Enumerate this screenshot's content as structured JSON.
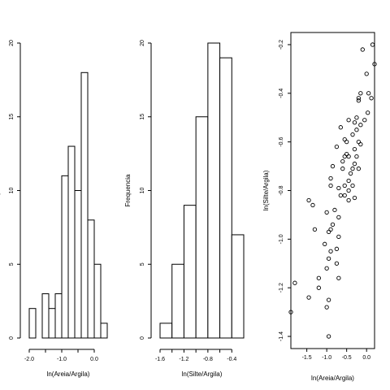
{
  "chart_data": [
    {
      "type": "bar",
      "xlabel": "ln(Areia/Argila)",
      "ylabel": "Frequencia",
      "bins": [
        {
          "x0": -2.0,
          "x1": -1.8,
          "count": 2
        },
        {
          "x0": -1.8,
          "x1": -1.6,
          "count": 0
        },
        {
          "x0": -1.6,
          "x1": -1.4,
          "count": 3
        },
        {
          "x0": -1.4,
          "x1": -1.2,
          "count": 2
        },
        {
          "x0": -1.2,
          "x1": -1.0,
          "count": 3
        },
        {
          "x0": -1.0,
          "x1": -0.8,
          "count": 11
        },
        {
          "x0": -0.8,
          "x1": -0.6,
          "count": 13
        },
        {
          "x0": -0.6,
          "x1": -0.4,
          "count": 10
        },
        {
          "x0": -0.4,
          "x1": -0.2,
          "count": 18
        },
        {
          "x0": -0.2,
          "x1": 0.0,
          "count": 8
        },
        {
          "x0": 0.0,
          "x1": 0.2,
          "count": 5
        },
        {
          "x0": 0.2,
          "x1": 0.4,
          "count": 1
        }
      ],
      "xticks": [
        -2.0,
        -1.5,
        -1.0,
        -0.5,
        0.0
      ],
      "xtick_labels": [
        "-2.0",
        "",
        "-1.0",
        "",
        "0.0"
      ],
      "yticks": [
        0,
        5,
        10,
        15,
        20
      ],
      "xlim": [
        -2.0,
        0.4
      ],
      "ylim": [
        0,
        20
      ]
    },
    {
      "type": "bar",
      "xlabel": "ln(Silte/Argila)",
      "ylabel": "Frequencia",
      "bins": [
        {
          "x0": -1.6,
          "x1": -1.4,
          "count": 1
        },
        {
          "x0": -1.4,
          "x1": -1.2,
          "count": 5
        },
        {
          "x0": -1.2,
          "x1": -1.0,
          "count": 9
        },
        {
          "x0": -1.0,
          "x1": -0.8,
          "count": 15
        },
        {
          "x0": -0.8,
          "x1": -0.6,
          "count": 20
        },
        {
          "x0": -0.6,
          "x1": -0.4,
          "count": 19
        },
        {
          "x0": -0.4,
          "x1": -0.2,
          "count": 7
        }
      ],
      "xticks": [
        -1.6,
        -1.4,
        -1.2,
        -1.0,
        -0.8,
        -0.6,
        -0.4
      ],
      "xtick_labels": [
        "-1.6",
        "",
        "-1.2",
        "",
        "-0.8",
        "",
        "-0.4"
      ],
      "yticks": [
        0,
        5,
        10,
        15,
        20
      ],
      "xlim": [
        -1.6,
        -0.2
      ],
      "ylim": [
        0,
        20
      ]
    },
    {
      "type": "scatter",
      "xlabel": "ln(Areia/Argila)",
      "ylabel": "ln(Silte/Argila)",
      "xticks": [
        -1.5,
        -1.0,
        -0.5,
        0.0
      ],
      "xtick_labels": [
        "-1.5",
        "-1.0",
        "-0.5",
        "0.0"
      ],
      "yticks": [
        -1.4,
        -1.2,
        -1.0,
        -0.8,
        -0.6,
        -0.4,
        -0.2
      ],
      "ytick_labels": [
        "-1.4",
        "-1.2",
        "-1.0",
        "-0.8",
        "-0.6",
        "-0.4",
        "-0.2"
      ],
      "xlim": [
        -1.9,
        0.2
      ],
      "ylim": [
        -1.45,
        -0.15
      ],
      "points": [
        [
          0.15,
          -0.2
        ],
        [
          0.2,
          -0.28
        ],
        [
          -0.1,
          -0.22
        ],
        [
          0.0,
          -0.32
        ],
        [
          -0.15,
          -0.4
        ],
        [
          0.05,
          -0.4
        ],
        [
          0.12,
          -0.42
        ],
        [
          -0.2,
          -0.42
        ],
        [
          -0.2,
          -0.43
        ],
        [
          0.03,
          -0.48
        ],
        [
          -0.25,
          -0.5
        ],
        [
          -0.3,
          -0.52
        ],
        [
          -0.05,
          -0.51
        ],
        [
          -0.45,
          -0.51
        ],
        [
          -0.15,
          -0.53
        ],
        [
          -0.25,
          -0.55
        ],
        [
          -0.35,
          -0.57
        ],
        [
          -0.65,
          -0.54
        ],
        [
          -0.2,
          -0.6
        ],
        [
          -0.5,
          -0.6
        ],
        [
          -0.55,
          -0.59
        ],
        [
          -0.15,
          -0.61
        ],
        [
          -0.3,
          -0.63
        ],
        [
          -0.75,
          -0.62
        ],
        [
          -0.25,
          -0.66
        ],
        [
          -0.45,
          -0.66
        ],
        [
          -0.55,
          -0.66
        ],
        [
          -0.3,
          -0.69
        ],
        [
          -0.6,
          -0.68
        ],
        [
          -0.35,
          -0.71
        ],
        [
          -0.6,
          -0.71
        ],
        [
          -0.85,
          -0.7
        ],
        [
          -0.4,
          -0.73
        ],
        [
          -0.2,
          -0.71
        ],
        [
          -0.45,
          -0.76
        ],
        [
          -0.55,
          -0.78
        ],
        [
          -0.9,
          -0.75
        ],
        [
          -0.35,
          -0.78
        ],
        [
          -0.7,
          -0.79
        ],
        [
          -0.45,
          -0.8
        ],
        [
          -0.65,
          -0.82
        ],
        [
          -0.3,
          -0.83
        ],
        [
          -0.45,
          -0.84
        ],
        [
          -1.45,
          -0.84
        ],
        [
          -1.35,
          -0.86
        ],
        [
          -0.8,
          -0.88
        ],
        [
          -1.0,
          -0.89
        ],
        [
          -0.7,
          -0.91
        ],
        [
          -0.85,
          -0.94
        ],
        [
          -1.3,
          -0.96
        ],
        [
          -0.9,
          -0.96
        ],
        [
          -0.95,
          -0.97
        ],
        [
          -0.7,
          -0.99
        ],
        [
          -1.05,
          -1.02
        ],
        [
          -0.75,
          -1.04
        ],
        [
          -0.9,
          -1.05
        ],
        [
          -0.95,
          -1.08
        ],
        [
          -0.75,
          -1.1
        ],
        [
          -1.0,
          -1.12
        ],
        [
          -1.2,
          -1.16
        ],
        [
          -0.7,
          -1.16
        ],
        [
          -1.8,
          -1.18
        ],
        [
          -1.2,
          -1.2
        ],
        [
          -1.45,
          -1.24
        ],
        [
          -0.95,
          -1.25
        ],
        [
          -1.0,
          -1.28
        ],
        [
          -1.9,
          -1.3
        ],
        [
          -0.95,
          -1.4
        ],
        [
          -0.9,
          -0.78
        ],
        [
          -0.55,
          -0.82
        ],
        [
          -0.5,
          -0.65
        ]
      ]
    }
  ]
}
